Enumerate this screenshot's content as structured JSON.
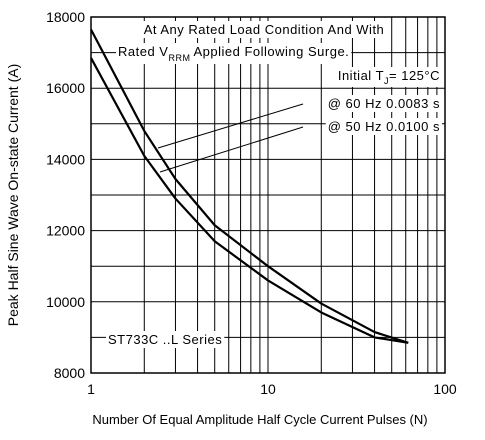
{
  "chart_data": {
    "type": "line",
    "xlabel": "Number Of Equal Amplitude Half Cycle Current Pulses (N)",
    "ylabel": "Peak Half Sine Wave On-state Current (A)",
    "x": [
      1,
      2,
      3,
      5,
      10,
      20,
      40,
      62
    ],
    "series": [
      {
        "name": "@ 60 Hz 0.0083 s",
        "color": "#000000",
        "values": [
          17650,
          14800,
          13450,
          12150,
          11000,
          9950,
          9150,
          8850
        ]
      },
      {
        "name": "@ 50 Hz 0.0100 s",
        "color": "#000000",
        "values": [
          16850,
          14100,
          12900,
          11700,
          10600,
          9700,
          9000,
          8850
        ]
      }
    ],
    "xlim": [
      1,
      100
    ],
    "xticks": [
      1,
      10,
      100
    ],
    "x_minor_ticks": [
      2,
      3,
      4,
      5,
      6,
      7,
      8,
      9,
      20,
      30,
      40,
      50,
      60,
      70,
      80,
      90
    ],
    "log_x": true,
    "ylim": [
      8000,
      18000
    ],
    "yticks": [
      8000,
      10000,
      12000,
      14000,
      16000,
      18000
    ],
    "y_minor_ticks": [
      9000,
      11000,
      13000,
      15000,
      17000
    ],
    "grid": true,
    "annotations": {
      "line1": "At Any Rated Load Condition And With",
      "line2_a": "Rated V",
      "line2_sub": "RRM",
      "line2_b": "Applied Following Surge.",
      "temp_a": "Initial T",
      "temp_sub": "J",
      "temp_b": "= 125°C",
      "series_name": "ST733C ..L Series"
    }
  }
}
